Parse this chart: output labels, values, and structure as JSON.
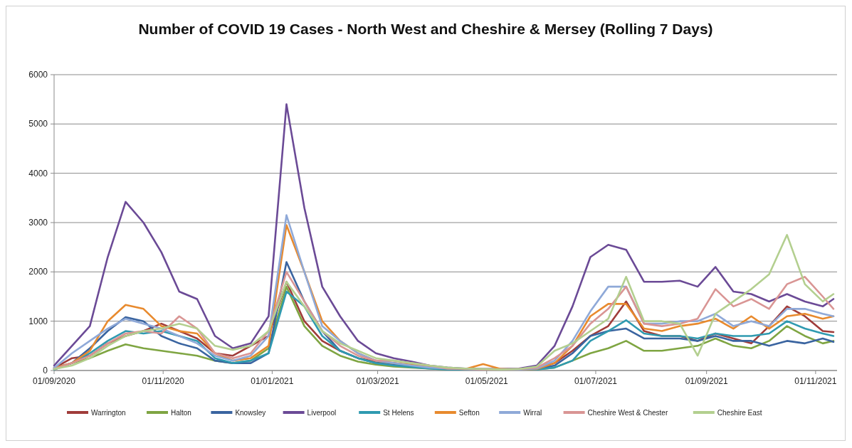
{
  "chart_data": {
    "type": "line",
    "title": "Number of COVID 19 Cases - North West and  Cheshire & Mersey (Rolling 7 Days)",
    "x": [
      "2020-09-01",
      "2020-09-11",
      "2020-09-21",
      "2020-10-01",
      "2020-10-11",
      "2020-10-21",
      "2020-10-31",
      "2020-11-10",
      "2020-11-20",
      "2020-11-30",
      "2020-12-10",
      "2020-12-20",
      "2020-12-30",
      "2021-01-09",
      "2021-01-19",
      "2021-01-29",
      "2021-02-08",
      "2021-02-18",
      "2021-02-28",
      "2021-03-10",
      "2021-03-20",
      "2021-03-30",
      "2021-04-09",
      "2021-04-19",
      "2021-04-29",
      "2021-05-09",
      "2021-05-19",
      "2021-05-29",
      "2021-06-08",
      "2021-06-18",
      "2021-06-28",
      "2021-07-08",
      "2021-07-18",
      "2021-07-28",
      "2021-08-07",
      "2021-08-17",
      "2021-08-27",
      "2021-09-06",
      "2021-09-16",
      "2021-09-26",
      "2021-10-06",
      "2021-10-16",
      "2021-10-26",
      "2021-11-05",
      "2021-11-11"
    ],
    "series": [
      {
        "name": "Warrington",
        "color": "#a03c3a",
        "values": [
          50,
          250,
          300,
          550,
          700,
          800,
          950,
          800,
          650,
          350,
          300,
          500,
          700,
          1800,
          1000,
          600,
          400,
          250,
          180,
          150,
          100,
          60,
          40,
          30,
          20,
          20,
          20,
          40,
          150,
          400,
          700,
          900,
          1400,
          800,
          700,
          700,
          600,
          750,
          650,
          550,
          900,
          1300,
          1100,
          800,
          780
        ]
      },
      {
        "name": "Halton",
        "color": "#7fa542",
        "values": [
          20,
          150,
          250,
          400,
          530,
          450,
          400,
          350,
          300,
          200,
          150,
          200,
          450,
          1700,
          900,
          500,
          300,
          180,
          120,
          80,
          60,
          40,
          20,
          20,
          20,
          20,
          20,
          20,
          60,
          200,
          350,
          450,
          600,
          400,
          400,
          450,
          500,
          650,
          500,
          450,
          600,
          900,
          700,
          550,
          600
        ]
      },
      {
        "name": "Knowsley",
        "color": "#3a64a0",
        "values": [
          50,
          150,
          450,
          800,
          1080,
          1000,
          700,
          550,
          450,
          200,
          150,
          150,
          350,
          2200,
          1400,
          800,
          400,
          250,
          150,
          120,
          80,
          50,
          30,
          20,
          20,
          20,
          20,
          30,
          100,
          350,
          700,
          800,
          850,
          650,
          650,
          650,
          600,
          700,
          600,
          600,
          500,
          600,
          550,
          650,
          580
        ]
      },
      {
        "name": "Liverpool",
        "color": "#6b4a96",
        "values": [
          100,
          500,
          900,
          2300,
          3420,
          3000,
          2400,
          1600,
          1450,
          700,
          450,
          550,
          1100,
          5400,
          3300,
          1700,
          1100,
          600,
          350,
          250,
          180,
          100,
          60,
          40,
          30,
          30,
          40,
          100,
          500,
          1300,
          2300,
          2550,
          2450,
          1800,
          1800,
          1820,
          1700,
          2100,
          1600,
          1550,
          1400,
          1550,
          1400,
          1300,
          1450
        ]
      },
      {
        "name": "St Helens",
        "color": "#2f9ab0",
        "values": [
          20,
          150,
          350,
          600,
          800,
          750,
          800,
          700,
          600,
          250,
          150,
          200,
          350,
          1600,
          1300,
          700,
          400,
          250,
          150,
          100,
          70,
          40,
          20,
          20,
          20,
          20,
          20,
          20,
          60,
          200,
          600,
          800,
          1020,
          750,
          700,
          700,
          650,
          750,
          700,
          700,
          750,
          1000,
          850,
          750,
          700
        ]
      },
      {
        "name": "Sefton",
        "color": "#e88a2e",
        "values": [
          50,
          150,
          400,
          1000,
          1330,
          1250,
          900,
          800,
          750,
          350,
          200,
          250,
          500,
          2950,
          2000,
          1000,
          600,
          350,
          200,
          150,
          120,
          80,
          40,
          30,
          130,
          30,
          20,
          30,
          150,
          500,
          1100,
          1350,
          1350,
          850,
          800,
          900,
          950,
          1050,
          850,
          1100,
          850,
          1100,
          1150,
          1050,
          1100
        ]
      },
      {
        "name": "Wirral",
        "color": "#8fa9d8",
        "values": [
          50,
          350,
          600,
          850,
          1050,
          950,
          850,
          700,
          550,
          300,
          200,
          300,
          700,
          3150,
          2000,
          900,
          600,
          350,
          200,
          150,
          100,
          60,
          40,
          30,
          20,
          20,
          20,
          40,
          200,
          600,
          1200,
          1700,
          1700,
          950,
          950,
          1000,
          1000,
          1150,
          900,
          1000,
          900,
          1250,
          1250,
          1150,
          1100
        ]
      },
      {
        "name": "Cheshire West & Chester",
        "color": "#d99594",
        "values": [
          30,
          150,
          300,
          550,
          750,
          800,
          750,
          1100,
          850,
          350,
          250,
          350,
          800,
          2000,
          1400,
          800,
          500,
          300,
          200,
          200,
          150,
          100,
          40,
          30,
          20,
          20,
          30,
          60,
          250,
          500,
          950,
          1250,
          1700,
          950,
          900,
          950,
          1050,
          1650,
          1300,
          1450,
          1250,
          1750,
          1900,
          1500,
          1250
        ]
      },
      {
        "name": "Cheshire East",
        "color": "#b3cf8f",
        "values": [
          30,
          100,
          250,
          500,
          700,
          800,
          850,
          950,
          850,
          500,
          420,
          500,
          800,
          1800,
          1300,
          800,
          550,
          400,
          250,
          200,
          150,
          100,
          60,
          40,
          30,
          20,
          30,
          80,
          400,
          550,
          800,
          1050,
          1900,
          1000,
          1000,
          950,
          300,
          1150,
          1400,
          1650,
          1950,
          2750,
          1750,
          1400,
          1550
        ]
      }
    ],
    "xlim": [
      "2020-09-01",
      "2021-11-13"
    ],
    "xticks": [
      {
        "value": "2020-09-01",
        "label": "01/09/2020"
      },
      {
        "value": "2020-11-01",
        "label": "01/11/2020"
      },
      {
        "value": "2021-01-01",
        "label": "01/01/2021"
      },
      {
        "value": "2021-03-01",
        "label": "01/03/2021"
      },
      {
        "value": "2021-05-01",
        "label": "01/05/2021"
      },
      {
        "value": "2021-07-01",
        "label": "01/07/2021"
      },
      {
        "value": "2021-09-01",
        "label": "01/09/2021"
      },
      {
        "value": "2021-11-01",
        "label": "01/11/2021"
      }
    ],
    "ylim": [
      0,
      6000
    ],
    "yticks": [
      0,
      1000,
      2000,
      3000,
      4000,
      5000,
      6000
    ],
    "grid": "y",
    "legend": "bottom",
    "marker": "none",
    "line_style": "solid"
  }
}
